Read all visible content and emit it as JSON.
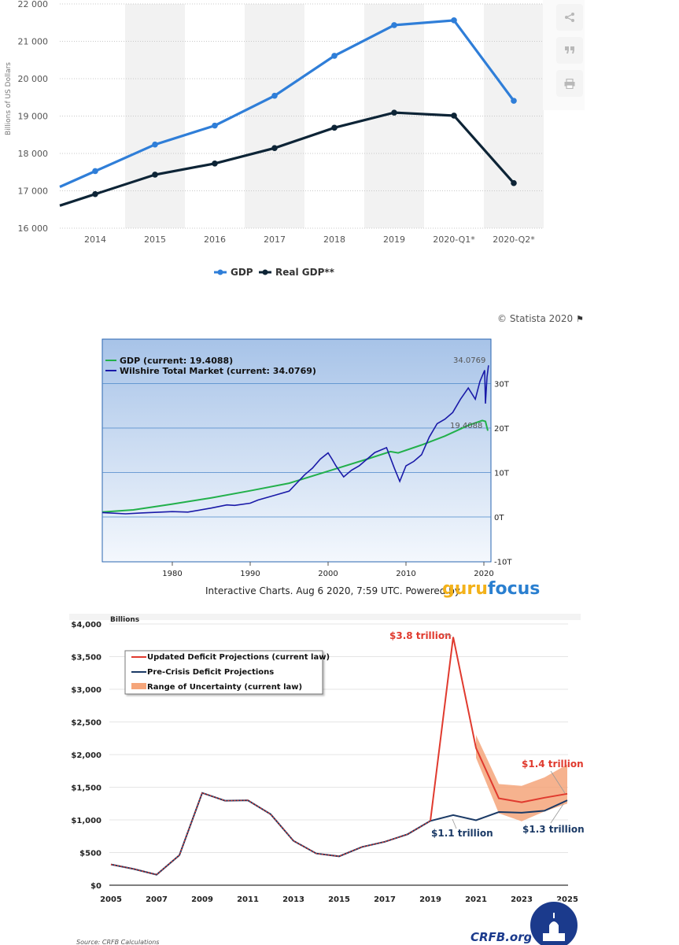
{
  "chart_data": [
    {
      "type": "line",
      "ylabel": "Billions of US Dollars",
      "ylim": [
        16000,
        22000
      ],
      "yticks": [
        "16 000",
        "17 000",
        "18 000",
        "19 000",
        "20 000",
        "21 000",
        "22 000"
      ],
      "ytick_values": [
        16000,
        17000,
        18000,
        19000,
        20000,
        21000,
        22000
      ],
      "categories": [
        "2014",
        "2015",
        "2016",
        "2017",
        "2018",
        "2019",
        "2020-Q1*",
        "2020-Q2*"
      ],
      "series": [
        {
          "name": "GDP",
          "color": "#2f7ed8",
          "values": [
            17527,
            18238,
            18745,
            19543,
            20612,
            21433,
            21561,
            19408
          ]
        },
        {
          "name": "Real GDP**",
          "color": "#0d2436",
          "values": [
            16912,
            17432,
            17731,
            18144,
            18688,
            19092,
            19011,
            17206
          ]
        }
      ],
      "credit": "© Statista 2020"
    },
    {
      "type": "line",
      "legend": [
        "GDP (current: 19.4088)",
        "Wilshire Total Market (current: 34.0769)"
      ],
      "colors": [
        "#22b04b",
        "#1a1aa8"
      ],
      "ytick_labels": [
        "-10T",
        "0T",
        "10T",
        "20T",
        "30T"
      ],
      "xtick_labels": [
        "1980",
        "1990",
        "2000",
        "2010",
        "2020"
      ],
      "current_labels": [
        "34.0769",
        "19.4088"
      ],
      "gdp_points": [
        [
          1971,
          1.1
        ],
        [
          1975,
          1.6
        ],
        [
          1980,
          2.9
        ],
        [
          1985,
          4.3
        ],
        [
          1990,
          5.9
        ],
        [
          1995,
          7.6
        ],
        [
          2000,
          10.3
        ],
        [
          2005,
          13.0
        ],
        [
          2008,
          14.7
        ],
        [
          2009,
          14.4
        ],
        [
          2012,
          16.2
        ],
        [
          2015,
          18.2
        ],
        [
          2018,
          20.6
        ],
        [
          2019.8,
          21.7
        ],
        [
          2020.2,
          21.5
        ],
        [
          2020.5,
          19.4
        ]
      ],
      "wilshire_points": [
        [
          1971,
          1.0
        ],
        [
          1974,
          0.7
        ],
        [
          1976,
          0.9
        ],
        [
          1980,
          1.2
        ],
        [
          1982,
          1.1
        ],
        [
          1985,
          2.0
        ],
        [
          1987,
          2.7
        ],
        [
          1988,
          2.6
        ],
        [
          1990,
          3.1
        ],
        [
          1991,
          3.8
        ],
        [
          1993,
          4.8
        ],
        [
          1995,
          5.8
        ],
        [
          1997,
          9.5
        ],
        [
          1998,
          11.0
        ],
        [
          1999,
          13.0
        ],
        [
          2000,
          14.4
        ],
        [
          2000.5,
          13.0
        ],
        [
          2001,
          11.5
        ],
        [
          2002,
          9.0
        ],
        [
          2003,
          10.5
        ],
        [
          2004,
          11.5
        ],
        [
          2005,
          13.0
        ],
        [
          2006,
          14.5
        ],
        [
          2007.5,
          15.6
        ],
        [
          2008.5,
          11.0
        ],
        [
          2009.2,
          8.0
        ],
        [
          2010,
          11.5
        ],
        [
          2011,
          12.5
        ],
        [
          2012,
          14.0
        ],
        [
          2013,
          18.0
        ],
        [
          2014,
          21.0
        ],
        [
          2015,
          22.0
        ],
        [
          2016,
          23.5
        ],
        [
          2017,
          26.5
        ],
        [
          2018,
          29.0
        ],
        [
          2018.9,
          26.5
        ],
        [
          2019.5,
          30.5
        ],
        [
          2020.1,
          33.0
        ],
        [
          2020.2,
          25.5
        ],
        [
          2020.4,
          31.5
        ],
        [
          2020.6,
          34.1
        ]
      ],
      "footer": "Interactive Charts. Aug 6 2020, 7:59 UTC. Powered by",
      "logo": {
        "part1": "guru",
        "part2": "focus"
      }
    },
    {
      "type": "line",
      "unit_label": "Billions",
      "yticks": [
        "$0",
        "$500",
        "$1,000",
        "$1,500",
        "$2,000",
        "$2,500",
        "$3,000",
        "$3,500",
        "$4,000"
      ],
      "ytick_values": [
        0,
        500,
        1000,
        1500,
        2000,
        2500,
        3000,
        3500,
        4000
      ],
      "xtick_labels": [
        "2005",
        "2007",
        "2009",
        "2011",
        "2013",
        "2015",
        "2017",
        "2019",
        "2021",
        "2023",
        "2025"
      ],
      "historical": {
        "x": [
          2005,
          2006,
          2007,
          2008,
          2009,
          2010,
          2011,
          2012,
          2013,
          2014,
          2015,
          2016,
          2017,
          2018,
          2019
        ],
        "values": [
          318,
          248,
          161,
          459,
          1413,
          1294,
          1300,
          1087,
          680,
          485,
          442,
          585,
          665,
          779,
          984
        ]
      },
      "updated": {
        "name": "Updated Deficit Projections (current law)",
        "color": "#e03a2e",
        "x": [
          2019,
          2020,
          2021,
          2022,
          2023,
          2024,
          2025
        ],
        "values": [
          984,
          3800,
          2100,
          1330,
          1270,
          1340,
          1400
        ]
      },
      "precrisis": {
        "name": "Pre-Crisis Deficit Projections",
        "color": "#1b3a66",
        "x": [
          2019,
          2020,
          2021,
          2022,
          2023,
          2024,
          2025
        ],
        "values": [
          984,
          1073,
          994,
          1120,
          1110,
          1140,
          1300
        ]
      },
      "uncertainty": {
        "name": "Range of Uncertainty (current law)",
        "color": "#f5a57a",
        "x": [
          2021,
          2022,
          2023,
          2024,
          2025
        ],
        "upper": [
          2300,
          1550,
          1520,
          1650,
          1850
        ],
        "lower": [
          1950,
          1100,
          980,
          1130,
          1250
        ]
      },
      "annotations": [
        "$3.8 trillion",
        "$1.4 trillion",
        "$1.1 trillion",
        "$1.3 trillion"
      ],
      "source": "Source: CRFB Calculations",
      "brand": "CRFB.org"
    }
  ],
  "statista_legend": {
    "gdp": "GDP",
    "real_gdp": "Real GDP**"
  }
}
